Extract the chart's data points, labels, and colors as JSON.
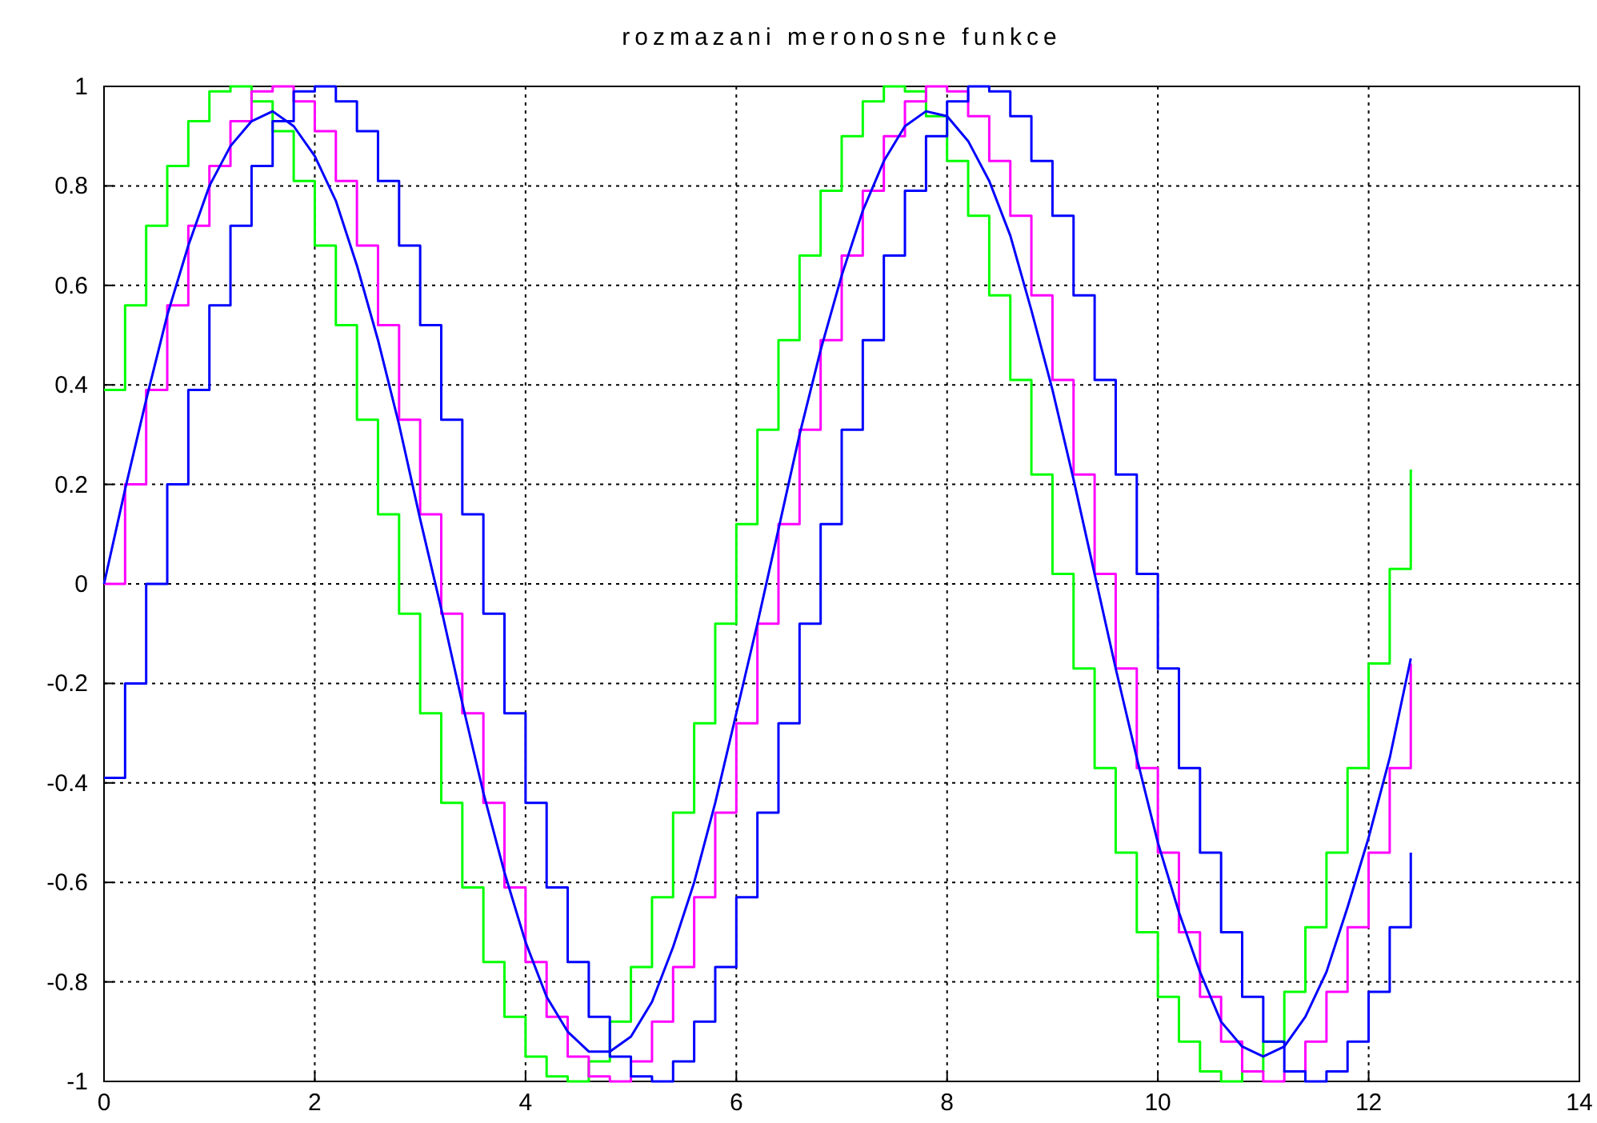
{
  "chart_data": {
    "type": "step",
    "title": "rozmazani meronosne funkce",
    "x": [
      0,
      0.2,
      0.4,
      0.6,
      0.8,
      1,
      1.2,
      1.4,
      1.6,
      1.8,
      2,
      2.2,
      2.4,
      2.6,
      2.8,
      3,
      3.2,
      3.4,
      3.6,
      3.8,
      4,
      4.2,
      4.4,
      4.6,
      4.8,
      5,
      5.2,
      5.4,
      5.6,
      5.8,
      6,
      6.2,
      6.4,
      6.6,
      6.8,
      7,
      7.2,
      7.4,
      7.6,
      7.8,
      8,
      8.2,
      8.4,
      8.6,
      8.8,
      9,
      9.2,
      9.4,
      9.6,
      9.8,
      10,
      10.2,
      10.4,
      10.6,
      10.8,
      11,
      11.2,
      11.4,
      11.6,
      11.8,
      12,
      12.2,
      12.4
    ],
    "series": [
      {
        "color": "#00ff00",
        "values": [
          0.39,
          0.56,
          0.72,
          0.84,
          0.93,
          0.99,
          1,
          0.97,
          0.91,
          0.81,
          0.68,
          0.52,
          0.33,
          0.14,
          -0.06,
          -0.26,
          -0.44,
          -0.61,
          -0.76,
          -0.87,
          -0.95,
          -0.99,
          -1,
          -0.96,
          -0.88,
          -0.77,
          -0.63,
          -0.46,
          -0.28,
          -0.08,
          0.12,
          0.31,
          0.49,
          0.66,
          0.79,
          0.9,
          0.97,
          1,
          0.99,
          0.94,
          0.85,
          0.74,
          0.58,
          0.41,
          0.22,
          0.02,
          -0.17,
          -0.37,
          -0.54,
          -0.7,
          -0.83,
          -0.92,
          -0.98,
          -1,
          -0.98,
          -0.92,
          -0.82,
          -0.69,
          -0.54,
          -0.37,
          -0.16,
          0.03,
          0.23
        ]
      },
      {
        "color": "#ff00ff",
        "values": [
          0,
          0.2,
          0.39,
          0.56,
          0.72,
          0.84,
          0.93,
          0.99,
          1,
          0.97,
          0.91,
          0.81,
          0.68,
          0.52,
          0.33,
          0.14,
          -0.06,
          -0.26,
          -0.44,
          -0.61,
          -0.76,
          -0.87,
          -0.95,
          -0.99,
          -1,
          -0.96,
          -0.88,
          -0.77,
          -0.63,
          -0.46,
          -0.28,
          -0.08,
          0.12,
          0.31,
          0.49,
          0.66,
          0.79,
          0.9,
          0.97,
          1,
          0.99,
          0.94,
          0.85,
          0.74,
          0.58,
          0.41,
          0.22,
          0.02,
          -0.17,
          -0.37,
          -0.54,
          -0.7,
          -0.83,
          -0.92,
          -0.98,
          -1,
          -0.98,
          -0.92,
          -0.82,
          -0.69,
          -0.54,
          -0.37,
          -0.16
        ]
      },
      {
        "color": "#0000ff",
        "values": [
          -0.39,
          -0.2,
          0,
          0.2,
          0.39,
          0.56,
          0.72,
          0.84,
          0.93,
          0.99,
          1,
          0.97,
          0.91,
          0.81,
          0.68,
          0.52,
          0.33,
          0.14,
          -0.06,
          -0.26,
          -0.44,
          -0.61,
          -0.76,
          -0.87,
          -0.95,
          -0.99,
          -1,
          -0.96,
          -0.88,
          -0.77,
          -0.63,
          -0.46,
          -0.28,
          -0.08,
          0.12,
          0.31,
          0.49,
          0.66,
          0.79,
          0.9,
          0.97,
          1,
          0.99,
          0.94,
          0.85,
          0.74,
          0.58,
          0.41,
          0.22,
          0.02,
          -0.17,
          -0.37,
          -0.54,
          -0.7,
          -0.83,
          -0.92,
          -0.98,
          -1,
          -0.98,
          -0.92,
          -0.82,
          -0.69,
          -0.54
        ]
      },
      {
        "type": "line",
        "color": "#0000ff",
        "values": [
          0,
          0.19,
          0.37,
          0.54,
          0.68,
          0.8,
          0.88,
          0.93,
          0.95,
          0.92,
          0.86,
          0.77,
          0.64,
          0.49,
          0.32,
          0.13,
          -0.05,
          -0.24,
          -0.42,
          -0.58,
          -0.72,
          -0.83,
          -0.9,
          -0.94,
          -0.94,
          -0.91,
          -0.84,
          -0.73,
          -0.6,
          -0.44,
          -0.26,
          -0.08,
          0.11,
          0.3,
          0.47,
          0.62,
          0.75,
          0.85,
          0.92,
          0.95,
          0.94,
          0.89,
          0.81,
          0.7,
          0.55,
          0.39,
          0.21,
          0.02,
          -0.17,
          -0.35,
          -0.52,
          -0.66,
          -0.78,
          -0.88,
          -0.93,
          -0.95,
          -0.93,
          -0.87,
          -0.78,
          -0.65,
          -0.51,
          -0.35,
          -0.15
        ]
      }
    ],
    "xlim": [
      0,
      14
    ],
    "xticks": [
      0,
      2,
      4,
      6,
      8,
      10,
      12,
      14
    ],
    "ylim": [
      -1,
      1
    ],
    "yticks": [
      -1,
      -0.8,
      -0.6,
      -0.4,
      -0.2,
      0,
      0.2,
      0.4,
      0.6,
      0.8,
      1
    ],
    "grid": true
  }
}
